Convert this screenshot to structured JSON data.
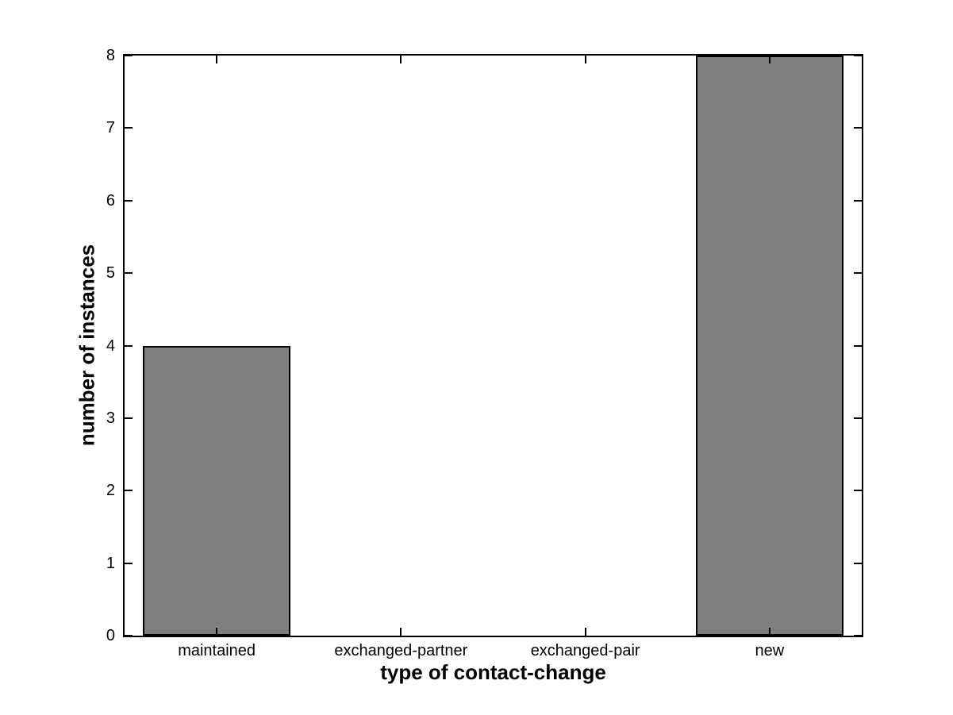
{
  "chart_data": {
    "type": "bar",
    "title": "",
    "xlabel": "type of contact-change",
    "ylabel": "number of instances",
    "categories": [
      "maintained",
      "exchanged-partner",
      "exchanged-pair",
      "new"
    ],
    "values": [
      4,
      0,
      0,
      8
    ],
    "ylim": [
      0,
      8
    ],
    "xlim": [
      0.5,
      4.5
    ],
    "yticks": [
      0,
      1,
      2,
      3,
      4,
      5,
      6,
      7,
      8
    ],
    "bar_width_fraction": 0.8,
    "bar_fill_color": "#7F7F7F",
    "bar_edge_color": "#000000",
    "axis_color": "#000000",
    "background_color": "#FFFFFF",
    "grid": false,
    "legend": null,
    "ticks_mirrored": true
  }
}
